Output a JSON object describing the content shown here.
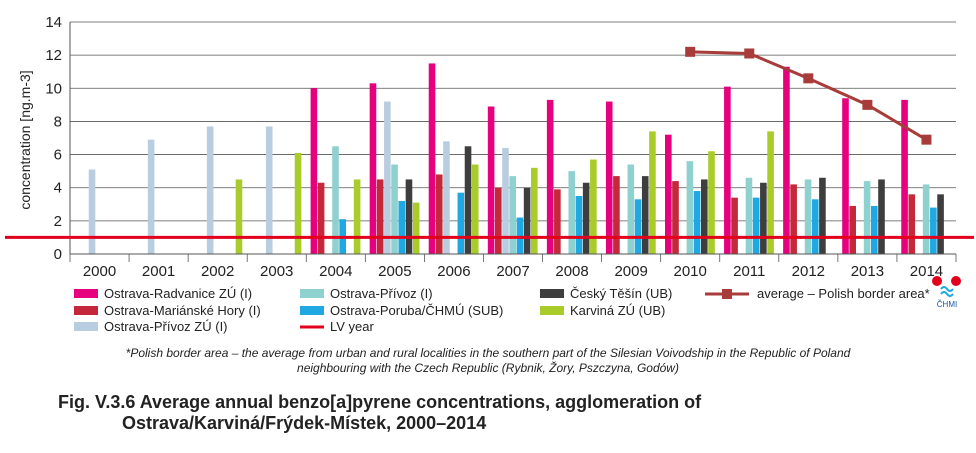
{
  "chart_data": {
    "type": "bar",
    "ylabel": "concentration [ng.m-3]",
    "ylim": [
      0,
      14
    ],
    "yticks": [
      "0",
      "2",
      "4",
      "6",
      "8",
      "10",
      "12",
      "14"
    ],
    "categories": [
      "2000",
      "2001",
      "2002",
      "2003",
      "2004",
      "2005",
      "2006",
      "2007",
      "2008",
      "2009",
      "2010",
      "2011",
      "2012",
      "2013",
      "2014"
    ],
    "grid": true,
    "legend_position": "bottom",
    "series": [
      {
        "name": "Ostrava-Radvanice ZÚ (I)",
        "color": "#e6007e",
        "values": [
          null,
          null,
          null,
          null,
          10.0,
          10.3,
          11.5,
          8.9,
          9.3,
          9.2,
          7.2,
          10.1,
          11.3,
          9.4,
          9.3
        ]
      },
      {
        "name": "Ostrava-Mariánské Hory (I)",
        "color": "#c4283a",
        "values": [
          null,
          null,
          null,
          null,
          4.3,
          4.5,
          4.8,
          4.0,
          3.9,
          4.7,
          4.4,
          3.4,
          4.2,
          2.9,
          3.6
        ]
      },
      {
        "name": "Ostrava-Přívoz ZÚ (I)",
        "color": "#b9cde0",
        "values": [
          5.1,
          6.9,
          7.7,
          7.7,
          null,
          9.2,
          6.8,
          6.4,
          null,
          null,
          null,
          null,
          null,
          null,
          null
        ]
      },
      {
        "name": "Ostrava-Přívoz (I)",
        "color": "#8fd1cf",
        "values": [
          null,
          null,
          null,
          null,
          6.5,
          5.4,
          null,
          4.7,
          5.0,
          5.4,
          5.6,
          4.6,
          4.5,
          4.4,
          4.2
        ]
      },
      {
        "name": "Ostrava-Poruba/ČHMÚ (SUB)",
        "color": "#1fa8e1",
        "values": [
          null,
          null,
          null,
          null,
          2.1,
          3.2,
          3.7,
          2.2,
          3.5,
          3.3,
          3.8,
          3.4,
          3.3,
          2.9,
          2.8
        ]
      },
      {
        "name": "Český Těšín (UB)",
        "color": "#3e3e3e",
        "values": [
          null,
          null,
          null,
          null,
          null,
          4.5,
          6.5,
          4.0,
          4.3,
          4.7,
          4.5,
          4.3,
          4.6,
          4.5,
          3.6
        ]
      },
      {
        "name": "Karviná ZÚ (UB)",
        "color": "#a9cc2b",
        "values": [
          null,
          null,
          4.5,
          6.1,
          4.5,
          3.1,
          5.4,
          5.2,
          5.7,
          7.4,
          6.2,
          7.4,
          null,
          null,
          null
        ]
      }
    ],
    "lines": [
      {
        "name": "LV year",
        "color": "#e3001b",
        "value": 1.0
      },
      {
        "name": "average  – Polish border area*",
        "color": "#a73c3a",
        "x": [
          "2010",
          "2011",
          "2012",
          "2013",
          "2014"
        ],
        "values": [
          12.2,
          12.1,
          10.6,
          9.0,
          6.9
        ]
      }
    ]
  },
  "legend_entries": [
    {
      "label": "Ostrava-Radvanice ZÚ (I)",
      "color": "#e6007e",
      "kind": "box"
    },
    {
      "label": "Ostrava-Mariánské Hory (I)",
      "color": "#c4283a",
      "kind": "box"
    },
    {
      "label": "Ostrava-Přívoz ZÚ (I)",
      "color": "#b9cde0",
      "kind": "box"
    },
    {
      "label": "Ostrava-Přívoz (I)",
      "color": "#8fd1cf",
      "kind": "box"
    },
    {
      "label": "Ostrava-Poruba/ČHMÚ (SUB)",
      "color": "#1fa8e1",
      "kind": "box"
    },
    {
      "label": "LV year",
      "color": "#e3001b",
      "kind": "line"
    },
    {
      "label": "Český Těšín (UB)",
      "color": "#3e3e3e",
      "kind": "box"
    },
    {
      "label": "Karviná ZÚ (UB)",
      "color": "#a9cc2b",
      "kind": "box"
    },
    {
      "label": "average  – Polish border area*",
      "color": "#a73c3a",
      "kind": "marker-line"
    }
  ],
  "logo": {
    "text": "ČHMI",
    "icon": "chmi-logo-icon"
  },
  "footnote": {
    "line1": "*Polish border area – the average from urban and rural localities in the southern part of the Silesian Voivodship in the Republic of Poland",
    "line2": "neighbouring with the Czech Republic (Rybnik, Žory, Pszczyna, Godów)"
  },
  "caption": {
    "line1": "Fig. V.3.6  Average annual benzo[a]pyrene concentrations, agglomeration of",
    "line2": "Ostrava/Karviná/Frýdek-Místek, 2000–2014"
  }
}
